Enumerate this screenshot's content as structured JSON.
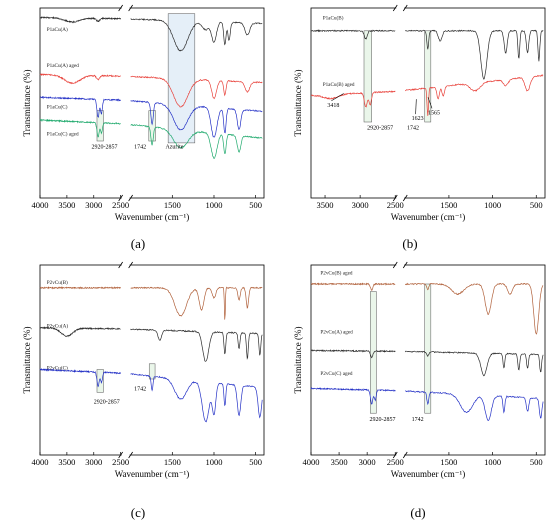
{
  "panel_labels": [
    "(a)",
    "(b)",
    "(c)",
    "(d)"
  ],
  "series_colors": {
    "black": "#2b2b2b",
    "red": "#e8413a",
    "blue": "#2431c6",
    "green": "#1ea96c",
    "brown": "#b0603a"
  },
  "chart_data": [
    {
      "type": "line",
      "xlabel": "Wavenumber (cm⁻¹)",
      "ylabel": "Transmittance (%)",
      "x_axis": "reversed, broken between 2500 and 2000",
      "x_ticks": [
        4000,
        3500,
        3000,
        2500,
        1500,
        1000,
        500
      ],
      "grid": false,
      "series": [
        {
          "name": "P1aCu(A)",
          "color": "black"
        },
        {
          "name": "P1aCu(A) aged",
          "color": "red"
        },
        {
          "name": "P1aCu(C)",
          "color": "blue"
        },
        {
          "name": "P1aCu(C) aged",
          "color": "green"
        }
      ],
      "annotations": [
        "2920-2857",
        "1742",
        "Azurite"
      ]
    },
    {
      "type": "line",
      "xlabel": "Wavenumber (cm⁻¹)",
      "ylabel": "Transmittance (%)",
      "x_axis": "reversed, broken between 2500 and 2000",
      "x_ticks": [
        3500,
        3000,
        2500,
        1500,
        1000,
        500
      ],
      "grid": false,
      "series": [
        {
          "name": "P1aCu(B)",
          "color": "black"
        },
        {
          "name": "P1aCu(B) aged",
          "color": "red"
        }
      ],
      "annotations": [
        "3418",
        "2920-2857",
        "1742",
        "1623",
        "1565"
      ]
    },
    {
      "type": "line",
      "xlabel": "Wavenumber (cm⁻¹)",
      "ylabel": "Transmittance (%)",
      "x_axis": "reversed, broken between 2500 and 2000",
      "x_ticks": [
        4000,
        3500,
        3000,
        2500,
        1500,
        1000,
        500
      ],
      "grid": false,
      "series": [
        {
          "name": "P2vCu(B)",
          "color": "brown"
        },
        {
          "name": "P2vCu(A)",
          "color": "black"
        },
        {
          "name": "P2vCu(C)",
          "color": "blue"
        }
      ],
      "annotations": [
        "2920-2857",
        "1742"
      ]
    },
    {
      "type": "line",
      "xlabel": "Wavenumber (cm⁻¹)",
      "ylabel": "Transmittance (%)",
      "x_axis": "reversed, broken between 2500 and 2000",
      "x_ticks": [
        4000,
        3500,
        3000,
        2500,
        1500,
        1000,
        500
      ],
      "grid": false,
      "series": [
        {
          "name": "P2vCu(B) aged",
          "color": "brown"
        },
        {
          "name": "P2vCu(A) aged",
          "color": "black"
        },
        {
          "name": "P2vCu(C) aged",
          "color": "blue"
        }
      ],
      "annotations": [
        "2920-2857",
        "1742"
      ]
    }
  ]
}
